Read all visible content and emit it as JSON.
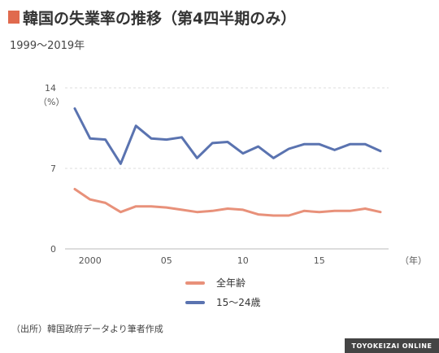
{
  "header": {
    "title": "韓国の失業率の推移（第4四半期のみ）",
    "subtitle": "1999～2019年",
    "accent_color": "#e06a4e"
  },
  "chart_data": {
    "type": "line",
    "x": [
      1999,
      2000,
      2001,
      2002,
      2003,
      2004,
      2005,
      2006,
      2007,
      2008,
      2009,
      2010,
      2011,
      2012,
      2013,
      2014,
      2015,
      2016,
      2017,
      2018,
      2019
    ],
    "xtick_labels": [
      {
        "x": 2000,
        "label": "2000"
      },
      {
        "x": 2005,
        "label": "05"
      },
      {
        "x": 2010,
        "label": "10"
      },
      {
        "x": 2015,
        "label": "15"
      }
    ],
    "x_unit_label": "（年）",
    "ylim": [
      0,
      14
    ],
    "yticks": [
      0,
      7,
      14
    ],
    "y_unit_label": "（%）",
    "grid": true,
    "series": [
      {
        "name": "全年齢",
        "color": "#e8917a",
        "values": [
          5.2,
          4.3,
          4.0,
          3.2,
          3.7,
          3.7,
          3.6,
          3.4,
          3.2,
          3.3,
          3.5,
          3.4,
          3.0,
          2.9,
          2.9,
          3.3,
          3.2,
          3.3,
          3.3,
          3.5,
          3.2
        ]
      },
      {
        "name": "15～24歳",
        "color": "#5a73b0",
        "values": [
          12.2,
          9.6,
          9.5,
          7.4,
          10.7,
          9.6,
          9.5,
          9.7,
          7.9,
          9.2,
          9.3,
          8.3,
          8.9,
          7.9,
          8.7,
          9.1,
          9.1,
          8.6,
          9.1,
          9.1,
          8.5
        ]
      }
    ]
  },
  "source": "（出所）韓国政府データより筆者作成",
  "brand": "TOYOKEIZAI ONLINE"
}
